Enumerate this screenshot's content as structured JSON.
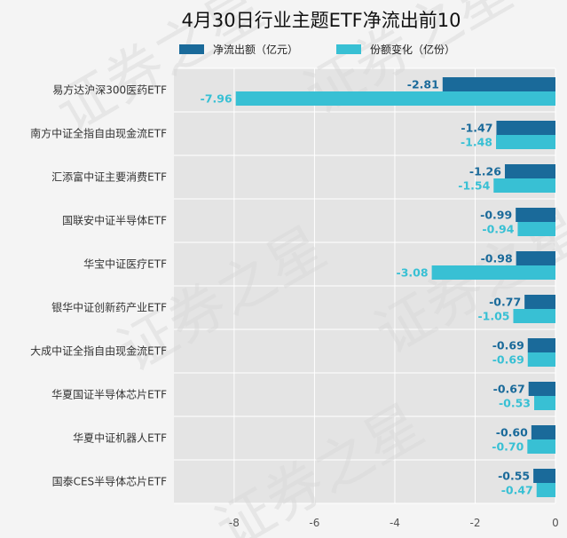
{
  "chart_data": {
    "type": "bar",
    "orientation": "horizontal",
    "title": "4月30日行业主题ETF净流出前10",
    "categories": [
      "易方达沪深300医药ETF",
      "南方中证全指自由现金流ETF",
      "汇添富中证主要消费ETF",
      "国联安中证半导体ETF",
      "华宝中证医疗ETF",
      "银华中证创新药产业ETF",
      "大成中证全指自由现金流ETF",
      "华夏国证半导体芯片ETF",
      "华夏中证机器人ETF",
      "国泰CES半导体芯片ETF"
    ],
    "series": [
      {
        "name": "净流出额（亿元）",
        "color": "#1a6a9a",
        "values": [
          -2.81,
          -1.47,
          -1.26,
          -0.99,
          -0.98,
          -0.77,
          -0.69,
          -0.67,
          -0.6,
          -0.55
        ]
      },
      {
        "name": "份额变化（亿份）",
        "color": "#38c0d4",
        "values": [
          -7.96,
          -1.48,
          -1.54,
          -0.94,
          -3.08,
          -1.05,
          -0.69,
          -0.53,
          -0.7,
          -0.47
        ]
      }
    ],
    "xlim": [
      -9.5,
      0
    ],
    "xticks": [
      -8,
      -6,
      -4,
      -2,
      0
    ],
    "xlabel": "",
    "ylabel": "",
    "grid": true,
    "legend_position": "top"
  },
  "colors": {
    "background": "#f4f4f4",
    "plot_background": "#e4e4e4",
    "grid": "#ffffff"
  },
  "watermark": "证券之星"
}
